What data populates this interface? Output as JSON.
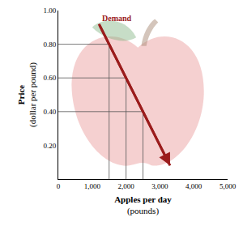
{
  "chart_data": {
    "type": "line",
    "xlabel": "Apples per day",
    "xlabel_units": "(pounds)",
    "ylabel": "Price",
    "ylabel_units": "(dollar per pound)",
    "series": [
      {
        "name": "Demand",
        "color": "#9b1c1c",
        "x": [
          1200,
          3300
        ],
        "values": [
          0.92,
          0.08
        ],
        "marker": "arrow"
      }
    ],
    "guides": {
      "x": [
        1500,
        2000,
        2500
      ],
      "y": [
        0.8,
        0.6,
        0.4
      ]
    },
    "xlim": [
      0,
      5000
    ],
    "xticks": [
      0,
      {
        "value": 1000,
        "label": "1,000"
      },
      {
        "value": 2000,
        "label": "2,000"
      },
      {
        "value": 3000,
        "label": "3,000"
      },
      {
        "value": 4000,
        "label": "4,000"
      },
      {
        "value": 5000,
        "label": "5,000"
      }
    ],
    "ylim": [
      0,
      1
    ],
    "yticks": [
      {
        "value": 0.2,
        "label": "0.20"
      },
      {
        "value": 0.4,
        "label": "0.40"
      },
      {
        "value": 0.6,
        "label": "0.60"
      },
      {
        "value": 0.8,
        "label": "0.80"
      },
      {
        "value": 1,
        "label": "1.00"
      }
    ],
    "grid": false
  }
}
